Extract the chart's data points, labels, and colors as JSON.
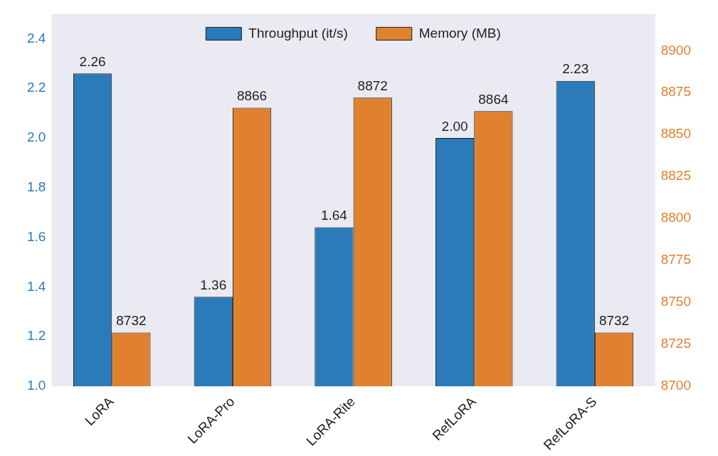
{
  "chart_data": {
    "type": "bar",
    "categories": [
      "LoRA",
      "LoRA-Pro",
      "LoRA-Rite",
      "RefLoRA",
      "RefLoRA-S"
    ],
    "series": [
      {
        "name": "Throughput (it/s)",
        "color": "#2b7bba",
        "values": [
          2.26,
          1.36,
          1.64,
          2.0,
          2.23
        ],
        "value_labels": [
          "2.26",
          "1.36",
          "1.64",
          "2.00",
          "2.23"
        ]
      },
      {
        "name": "Memory (MB)",
        "color": "#e0812f",
        "axis": "y2",
        "values": [
          8732,
          8866,
          8872,
          8864,
          8732
        ],
        "value_labels": [
          "8732",
          "8866",
          "8872",
          "8864",
          "8732"
        ]
      }
    ],
    "ylim": [
      1.0,
      2.5
    ],
    "yticks": [
      {
        "value": 1.0,
        "label": "1.0"
      },
      {
        "value": 1.2,
        "label": "1.2"
      },
      {
        "value": 1.4,
        "label": "1.4"
      },
      {
        "value": 1.6,
        "label": "1.6"
      },
      {
        "value": 1.8,
        "label": "1.8"
      },
      {
        "value": 2.0,
        "label": "2.0"
      },
      {
        "value": 2.2,
        "label": "2.2"
      },
      {
        "value": 2.4,
        "label": "2.4"
      }
    ],
    "y2lim": [
      8700,
      8922
    ],
    "y2ticks": [
      8700,
      8725,
      8750,
      8775,
      8800,
      8825,
      8850,
      8875,
      8900
    ],
    "grid": false,
    "legend": "top"
  }
}
